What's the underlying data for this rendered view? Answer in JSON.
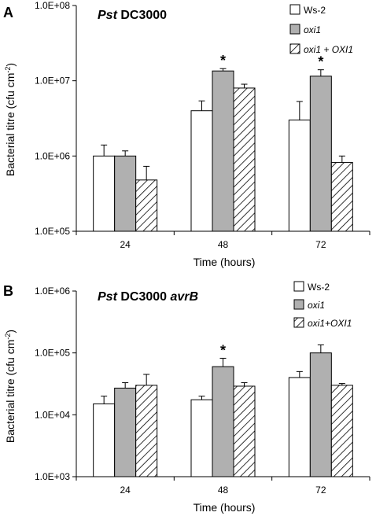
{
  "chart_data": [
    {
      "type": "bar",
      "panel_letter": "A",
      "title_bold": "Pst",
      "title_rest": " DC3000",
      "title_italic_suffix": "",
      "categories": [
        "24",
        "48",
        "72"
      ],
      "series": [
        {
          "name": "Ws-2",
          "values": [
            1000000,
            4000000,
            3000000
          ],
          "errors": [
            400000,
            1400000,
            2300000
          ],
          "fill": "white"
        },
        {
          "name": "oxi1",
          "values": [
            1000000,
            13500000,
            11500000
          ],
          "errors": [
            170000,
            1000000,
            2500000
          ],
          "fill": "gray"
        },
        {
          "name": "oxi1 + OXI1",
          "values": [
            480000,
            8000000,
            820000
          ],
          "errors": [
            250000,
            1000000,
            180000
          ],
          "fill": "hatch"
        }
      ],
      "legend_labels": [
        "Ws-2",
        "oxi1",
        "oxi1 + ",
        "OXI1"
      ],
      "significance": [
        {
          "series": 1,
          "category": 1,
          "mark": "*"
        },
        {
          "series": 1,
          "category": 2,
          "mark": "*"
        }
      ],
      "xlabel": "Time (hours)",
      "ylabel_main": "Bacterial titre (cfu cm",
      "ylabel_sup": "-2",
      "ylabel_end": ")",
      "yscale": "log",
      "ylim": [
        100000,
        100000000
      ],
      "yticks": [
        "1.0E+05",
        "1.0E+06",
        "1.0E+07",
        "1.0E+08"
      ],
      "legend_position": "top-right",
      "grid": false
    },
    {
      "type": "bar",
      "panel_letter": "B",
      "title_bold": "Pst",
      "title_rest": " DC3000 ",
      "title_italic_suffix": "avrB",
      "categories": [
        "24",
        "48",
        "72"
      ],
      "series": [
        {
          "name": "Ws-2",
          "values": [
            15000,
            17500,
            40000
          ],
          "errors": [
            5000,
            2500,
            10000
          ],
          "fill": "white"
        },
        {
          "name": "oxi1",
          "values": [
            27000,
            60000,
            100000
          ],
          "errors": [
            6000,
            22000,
            35000
          ],
          "fill": "gray"
        },
        {
          "name": "oxi1+OXI1",
          "values": [
            30000,
            29000,
            30000
          ],
          "errors": [
            15000,
            4000,
            2000
          ],
          "fill": "hatch"
        }
      ],
      "legend_labels": [
        "Ws-2",
        "oxi1",
        "oxi1+",
        "OXI1"
      ],
      "significance": [
        {
          "series": 1,
          "category": 1,
          "mark": "*"
        }
      ],
      "xlabel": "Time (hours)",
      "ylabel_main": "Bacterial titre (cfu cm",
      "ylabel_sup": "-2",
      "ylabel_end": ")",
      "yscale": "log",
      "ylim": [
        1000,
        1000000
      ],
      "yticks": [
        "1.0E+03",
        "1.0E+04",
        "1.0E+05",
        "1.0E+06"
      ],
      "legend_position": "top-right",
      "grid": false
    }
  ],
  "colors": {
    "gray_fill": "#b0b0b0",
    "outline": "#000000"
  }
}
